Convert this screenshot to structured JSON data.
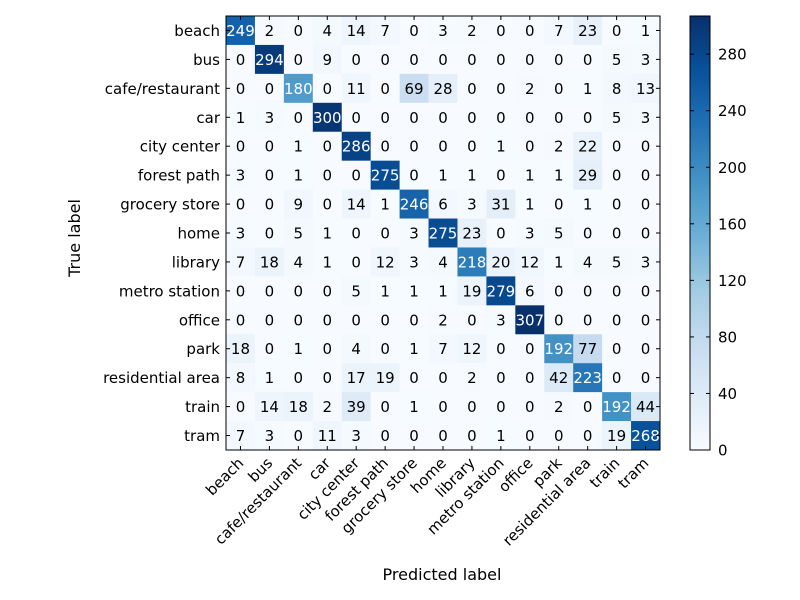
{
  "chart_data": {
    "type": "heatmap",
    "title": "",
    "xlabel": "Predicted label",
    "ylabel": "True label",
    "labels": [
      "beach",
      "bus",
      "cafe/restaurant",
      "car",
      "city center",
      "forest path",
      "grocery store",
      "home",
      "library",
      "metro station",
      "office",
      "park",
      "residential area",
      "train",
      "tram"
    ],
    "matrix": [
      [
        249,
        2,
        0,
        4,
        14,
        7,
        0,
        3,
        2,
        0,
        0,
        7,
        23,
        0,
        1
      ],
      [
        0,
        294,
        0,
        9,
        0,
        0,
        0,
        0,
        0,
        0,
        0,
        0,
        0,
        5,
        3
      ],
      [
        0,
        0,
        180,
        0,
        11,
        0,
        69,
        28,
        0,
        0,
        2,
        0,
        1,
        8,
        13
      ],
      [
        1,
        3,
        0,
        300,
        0,
        0,
        0,
        0,
        0,
        0,
        0,
        0,
        0,
        5,
        3
      ],
      [
        0,
        0,
        1,
        0,
        286,
        0,
        0,
        0,
        0,
        1,
        0,
        2,
        22,
        0,
        0
      ],
      [
        3,
        0,
        1,
        0,
        0,
        275,
        0,
        1,
        1,
        0,
        1,
        1,
        29,
        0,
        0
      ],
      [
        0,
        0,
        9,
        0,
        14,
        1,
        246,
        6,
        3,
        31,
        1,
        0,
        1,
        0,
        0
      ],
      [
        3,
        0,
        5,
        1,
        0,
        0,
        3,
        275,
        23,
        0,
        3,
        5,
        0,
        0,
        0
      ],
      [
        7,
        18,
        4,
        1,
        0,
        12,
        3,
        4,
        218,
        20,
        12,
        1,
        4,
        5,
        3
      ],
      [
        0,
        0,
        0,
        0,
        5,
        1,
        1,
        1,
        19,
        279,
        6,
        0,
        0,
        0,
        0
      ],
      [
        0,
        0,
        0,
        0,
        0,
        0,
        0,
        2,
        0,
        3,
        307,
        0,
        0,
        0,
        0
      ],
      [
        18,
        0,
        1,
        0,
        4,
        0,
        1,
        7,
        12,
        0,
        0,
        192,
        77,
        0,
        0
      ],
      [
        8,
        1,
        0,
        0,
        17,
        19,
        0,
        0,
        2,
        0,
        0,
        42,
        223,
        0,
        0
      ],
      [
        0,
        14,
        18,
        2,
        39,
        0,
        1,
        0,
        0,
        0,
        0,
        2,
        0,
        192,
        44
      ],
      [
        7,
        3,
        0,
        11,
        3,
        0,
        0,
        0,
        0,
        1,
        0,
        0,
        0,
        19,
        268
      ]
    ],
    "vmin": 0,
    "vmax": 307,
    "colormap": "Blues",
    "colorbar_ticks": [
      0,
      40,
      80,
      120,
      160,
      200,
      240,
      280
    ],
    "grid": false
  }
}
